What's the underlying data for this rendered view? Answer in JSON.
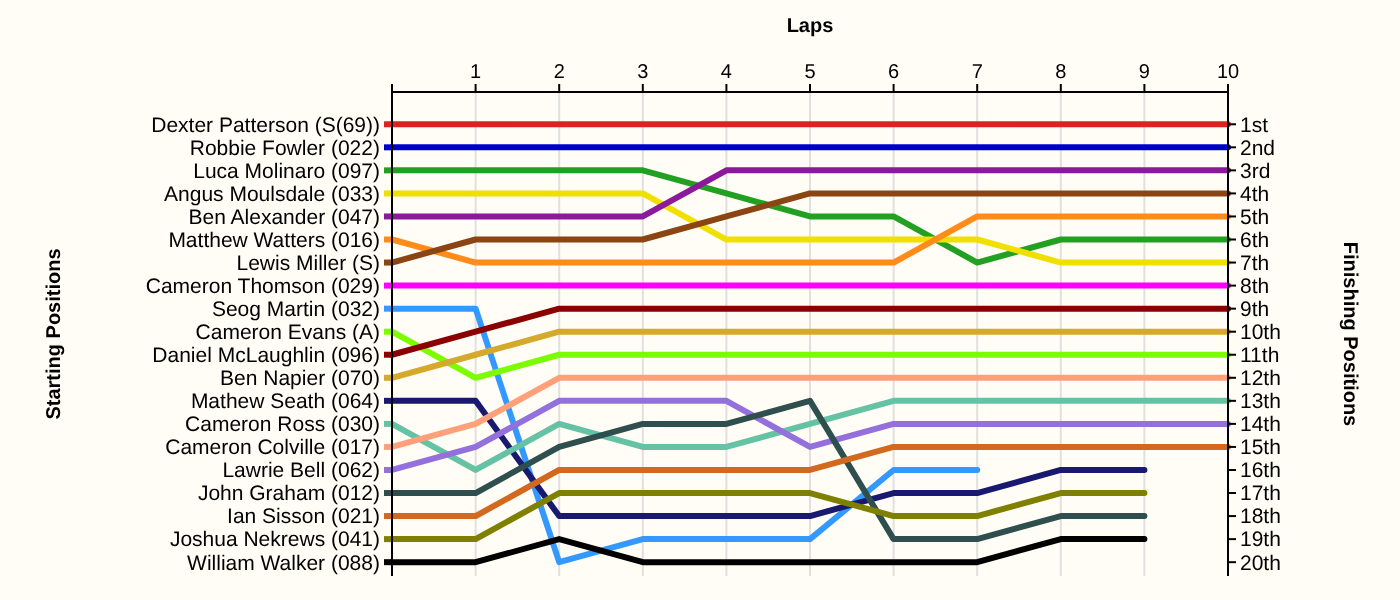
{
  "chart_data": {
    "type": "line",
    "xlabel": "Laps",
    "legend_title": "Starting Positions",
    "legend": "left",
    "y2label": "Finishing Positions",
    "x": [
      0,
      1,
      2,
      3,
      4,
      5,
      6,
      7,
      8,
      9,
      10
    ],
    "xlim": [
      0,
      10
    ],
    "xticks": [
      {
        "value": 0,
        "label": null
      },
      1,
      2,
      3,
      4,
      5,
      6,
      7,
      8,
      9,
      10
    ],
    "y2lim": [
      20.6,
      -0.4
    ],
    "y2ticks": [
      {
        "value": 1,
        "label": "1st"
      },
      {
        "value": 2,
        "label": "2nd"
      },
      {
        "value": 3,
        "label": "3rd"
      },
      {
        "value": 4,
        "label": "4th"
      },
      {
        "value": 5,
        "label": "5th"
      },
      {
        "value": 6,
        "label": "6th"
      },
      {
        "value": 7,
        "label": "7th"
      },
      {
        "value": 8,
        "label": "8th"
      },
      {
        "value": 9,
        "label": "9th"
      },
      {
        "value": 10,
        "label": "10th"
      },
      {
        "value": 11,
        "label": "11th"
      },
      {
        "value": 12,
        "label": "12th"
      },
      {
        "value": 13,
        "label": "13th"
      },
      {
        "value": 14,
        "label": "14th"
      },
      {
        "value": 15,
        "label": "15th"
      },
      {
        "value": 16,
        "label": "16th"
      },
      {
        "value": 17,
        "label": "17th"
      },
      {
        "value": 18,
        "label": "18th"
      },
      {
        "value": 19,
        "label": "19th"
      },
      {
        "value": 20,
        "label": "20th"
      }
    ],
    "grid": "x",
    "marker": "none",
    "line_style": "solid",
    "series": [
      {
        "name": "Dexter Patterson (S(69))",
        "axis": "y2",
        "color": "#dd2222",
        "values": [
          1,
          1,
          1,
          1,
          1,
          1,
          1,
          1,
          1,
          1,
          1
        ]
      },
      {
        "name": "Robbie Fowler (022)",
        "axis": "y2",
        "color": "#0000cc",
        "values": [
          2,
          2,
          2,
          2,
          2,
          2,
          2,
          2,
          2,
          2,
          2
        ]
      },
      {
        "name": "Luca Molinaro (097)",
        "axis": "y2",
        "color": "#22a022",
        "values": [
          3,
          3,
          3,
          3,
          4,
          5,
          5,
          7,
          6,
          6,
          6
        ]
      },
      {
        "name": "Angus Moulsdale (033)",
        "axis": "y2",
        "color": "#f0e000",
        "values": [
          4,
          4,
          4,
          4,
          6,
          6,
          6,
          6,
          7,
          7,
          7
        ]
      },
      {
        "name": "Ben Alexander (047)",
        "axis": "y2",
        "color": "#8b1a9b",
        "values": [
          5,
          5,
          5,
          5,
          3,
          3,
          3,
          3,
          3,
          3,
          3
        ]
      },
      {
        "name": "Matthew Watters (016)",
        "axis": "y2",
        "color": "#ff8c1a",
        "values": [
          6,
          7,
          7,
          7,
          7,
          7,
          7,
          5,
          5,
          5,
          5
        ]
      },
      {
        "name": "Lewis Miller (S)",
        "axis": "y2",
        "color": "#8b4513",
        "values": [
          7,
          6,
          6,
          6,
          5,
          4,
          4,
          4,
          4,
          4,
          4
        ]
      },
      {
        "name": "Cameron Thomson (029)",
        "axis": "y2",
        "color": "#ff00ff",
        "values": [
          8,
          8,
          8,
          8,
          8,
          8,
          8,
          8,
          8,
          8,
          8
        ]
      },
      {
        "name": "Seog Martin (032)",
        "axis": "y2",
        "color": "#3399ff",
        "values": [
          9,
          9,
          20,
          19,
          19,
          19,
          16,
          16,
          null,
          null,
          null
        ]
      },
      {
        "name": "Cameron Evans (A)",
        "axis": "y2",
        "color": "#7cfc00",
        "values": [
          10,
          12,
          11,
          11,
          11,
          11,
          11,
          11,
          11,
          11,
          11
        ]
      },
      {
        "name": "Daniel McLaughlin (096)",
        "axis": "y2",
        "color": "#8b0000",
        "values": [
          11,
          10,
          9,
          9,
          9,
          9,
          9,
          9,
          9,
          9,
          9
        ]
      },
      {
        "name": "Ben Napier (070)",
        "axis": "y2",
        "color": "#d4a92c",
        "values": [
          12,
          11,
          10,
          10,
          10,
          10,
          10,
          10,
          10,
          10,
          10
        ]
      },
      {
        "name": "Mathew Seath (064)",
        "axis": "y2",
        "color": "#191970",
        "values": [
          13,
          13,
          18,
          18,
          18,
          18,
          17,
          17,
          16,
          16,
          null
        ]
      },
      {
        "name": "Cameron Ross (030)",
        "axis": "y2",
        "color": "#66c2a5",
        "values": [
          14,
          16,
          14,
          15,
          15,
          14,
          13,
          13,
          13,
          13,
          13
        ]
      },
      {
        "name": "Cameron Colville (017)",
        "axis": "y2",
        "color": "#ffa07a",
        "values": [
          15,
          14,
          12,
          12,
          12,
          12,
          12,
          12,
          12,
          12,
          12
        ]
      },
      {
        "name": "Lawrie Bell (062)",
        "axis": "y2",
        "color": "#9370db",
        "values": [
          16,
          15,
          13,
          13,
          13,
          15,
          14,
          14,
          14,
          14,
          14
        ]
      },
      {
        "name": "John Graham (012)",
        "axis": "y2",
        "color": "#2f4f4f",
        "values": [
          17,
          17,
          15,
          14,
          14,
          13,
          19,
          19,
          18,
          18,
          null
        ]
      },
      {
        "name": "Ian Sisson (021)",
        "axis": "y2",
        "color": "#d2691e",
        "values": [
          18,
          18,
          16,
          16,
          16,
          16,
          15,
          15,
          15,
          15,
          15
        ]
      },
      {
        "name": "Joshua Nekrews (041)",
        "axis": "y2",
        "color": "#808000",
        "values": [
          19,
          19,
          17,
          17,
          17,
          17,
          18,
          18,
          17,
          17,
          null
        ]
      },
      {
        "name": "William Walker (088)",
        "axis": "y2",
        "color": "#000000",
        "values": [
          20,
          20,
          19,
          20,
          20,
          20,
          20,
          20,
          19,
          19,
          null
        ]
      }
    ]
  }
}
